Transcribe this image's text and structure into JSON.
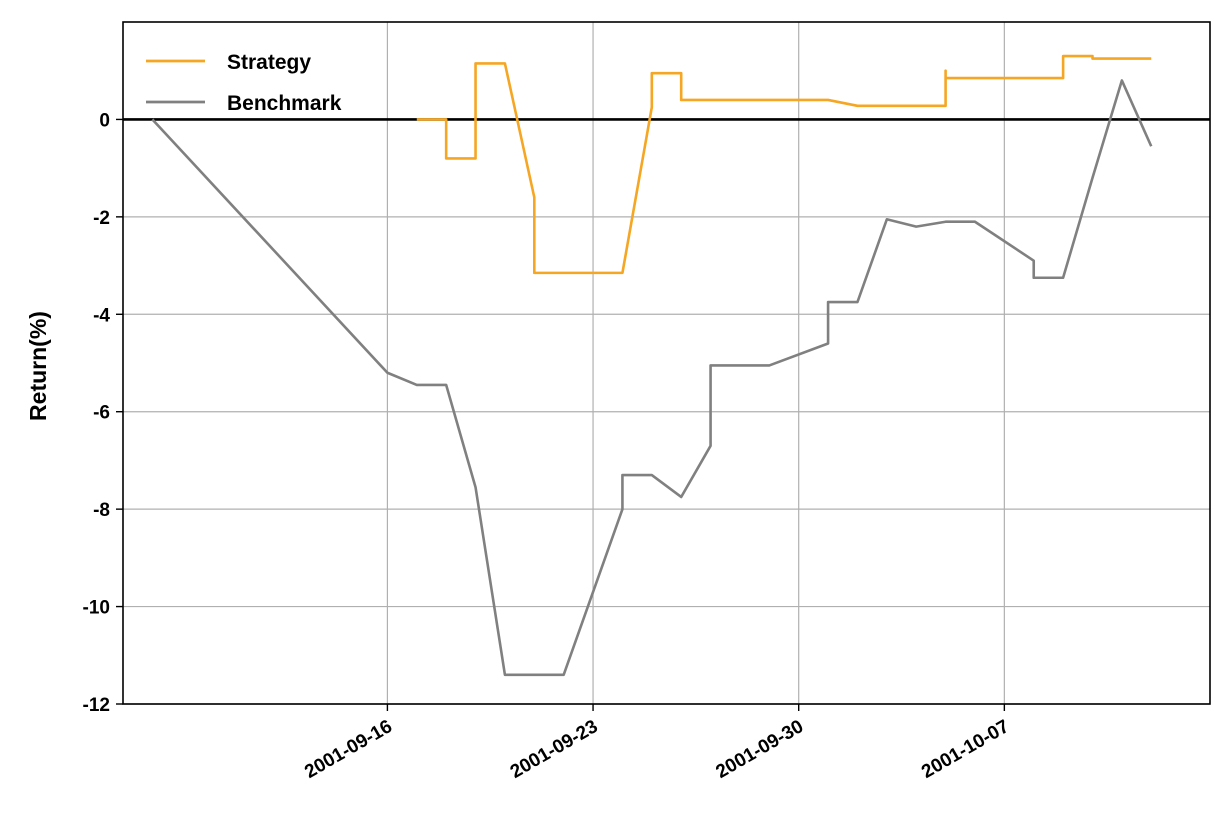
{
  "chart_data": {
    "type": "line",
    "xlabel": "",
    "ylabel": "Return(%)",
    "ylim": [
      -12,
      2
    ],
    "xlim": [
      "2001-09-07",
      "2001-10-14"
    ],
    "yticks": [
      0,
      -2,
      -4,
      -6,
      -8,
      -10,
      -12
    ],
    "ytick_labels": [
      "0",
      "-2",
      "-4",
      "-6",
      "-8",
      "-10",
      "-12"
    ],
    "xticks": [
      "2001-09-16",
      "2001-09-23",
      "2001-09-30",
      "2001-10-07"
    ],
    "xtick_labels": [
      "2001-09-16",
      "2001-09-23",
      "2001-09-30",
      "2001-10-07"
    ],
    "grid": true,
    "zero_line": true,
    "legend": {
      "placement": "top-left"
    },
    "series": [
      {
        "name": "Strategy",
        "color": "#f5a623",
        "points": [
          [
            "2001-09-17",
            0
          ],
          [
            "2001-09-18",
            0
          ],
          [
            "2001-09-18",
            -0.8
          ],
          [
            "2001-09-19",
            -0.8
          ],
          [
            "2001-09-19",
            -0.7
          ],
          [
            "2001-09-19",
            1.15
          ],
          [
            "2001-09-20",
            1.15
          ],
          [
            "2001-09-21",
            -1.6
          ],
          [
            "2001-09-21",
            -3.15
          ],
          [
            "2001-09-24",
            -3.15
          ],
          [
            "2001-09-25",
            0.25
          ],
          [
            "2001-09-25",
            0.95
          ],
          [
            "2001-09-26",
            0.95
          ],
          [
            "2001-09-26",
            0.4
          ],
          [
            "2001-10-01",
            0.4
          ],
          [
            "2001-10-02",
            0.28
          ],
          [
            "2001-10-05",
            0.28
          ],
          [
            "2001-10-05",
            1.0
          ],
          [
            "2001-10-05",
            0.85
          ],
          [
            "2001-10-09",
            0.85
          ],
          [
            "2001-10-09",
            1.3
          ],
          [
            "2001-10-10",
            1.3
          ],
          [
            "2001-10-10",
            1.25
          ],
          [
            "2001-10-12",
            1.25
          ]
        ]
      },
      {
        "name": "Benchmark",
        "color": "#808080",
        "points": [
          [
            "2001-09-08",
            0
          ],
          [
            "2001-09-16",
            -5.2
          ],
          [
            "2001-09-17",
            -5.45
          ],
          [
            "2001-09-18",
            -5.45
          ],
          [
            "2001-09-19",
            -7.55
          ],
          [
            "2001-09-19",
            -7.55
          ],
          [
            "2001-09-20",
            -11.4
          ],
          [
            "2001-09-22",
            -11.4
          ],
          [
            "2001-09-24",
            -8.0
          ],
          [
            "2001-09-24",
            -7.3
          ],
          [
            "2001-09-25",
            -7.3
          ],
          [
            "2001-09-26",
            -7.75
          ],
          [
            "2001-09-26",
            -7.75
          ],
          [
            "2001-09-27",
            -6.7
          ],
          [
            "2001-09-27",
            -5.05
          ],
          [
            "2001-09-29",
            -5.05
          ],
          [
            "2001-10-01",
            -4.6
          ],
          [
            "2001-10-01",
            -3.75
          ],
          [
            "2001-10-02",
            -3.75
          ],
          [
            "2001-10-03",
            -2.05
          ],
          [
            "2001-10-04",
            -2.2
          ],
          [
            "2001-10-05",
            -2.1
          ],
          [
            "2001-10-06",
            -2.1
          ],
          [
            "2001-10-08",
            -2.9
          ],
          [
            "2001-10-08",
            -3.25
          ],
          [
            "2001-10-09",
            -3.25
          ],
          [
            "2001-10-10",
            -1.2
          ],
          [
            "2001-10-10",
            -1.2
          ],
          [
            "2001-10-11",
            0.8
          ],
          [
            "2001-10-12",
            -0.55
          ],
          [
            "2001-10-12",
            -0.55
          ]
        ]
      }
    ]
  }
}
